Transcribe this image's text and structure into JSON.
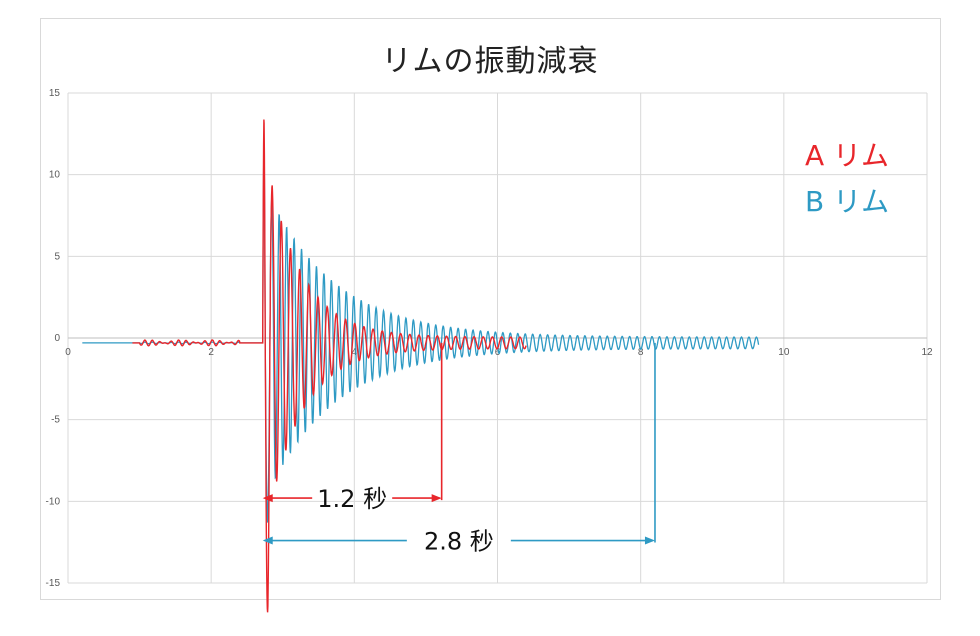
{
  "chart_data": {
    "type": "line",
    "title": "リムの振動減衰",
    "xlim": [
      0,
      12
    ],
    "ylim": [
      -15,
      15
    ],
    "x_ticks": [
      0,
      2,
      4,
      6,
      8,
      10,
      12
    ],
    "x_tick_labels": [
      "0",
      "2",
      "4",
      "6",
      "8",
      "10",
      "12"
    ],
    "y_ticks": [
      15,
      10,
      5,
      0,
      -5,
      -10,
      -15
    ],
    "y_tick_labels": [
      "15",
      "10",
      "5",
      "0",
      "-5",
      "-10",
      "-15"
    ],
    "grid": true,
    "legend": {
      "placement": "top-right",
      "entries": [
        "A リム",
        "B リム"
      ]
    },
    "series": [
      {
        "name": "A リム",
        "color": "#e8262b",
        "x_start": 0.9,
        "x_end": 6.4,
        "baseline": -0.3,
        "impact_time": 2.72,
        "peak_max": 13.8,
        "peak_min": -16.5,
        "decay_time_s": 1.2
      },
      {
        "name": "B リム",
        "color": "#2e9ac4",
        "x_start": 0.2,
        "x_end": 9.65,
        "baseline": -0.3,
        "impact_time": 2.72,
        "peak_max": 12.0,
        "peak_min": -11.0,
        "decay_time_s": 2.8
      }
    ],
    "annotations": [
      {
        "label": "1.2 秒",
        "series": "A リム",
        "x_from": 2.72,
        "x_to": 5.22,
        "y": -9.8,
        "marker_x": 5.22
      },
      {
        "label": "2.8 秒",
        "series": "B リム",
        "x_from": 2.72,
        "x_to": 8.2,
        "y": -12.4,
        "marker_x": 8.2
      }
    ]
  }
}
